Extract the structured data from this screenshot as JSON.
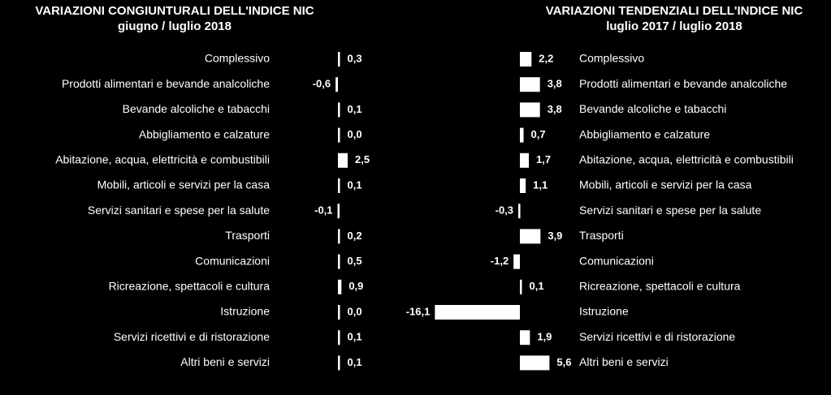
{
  "chart_data": [
    {
      "type": "bar",
      "orientation": "horizontal",
      "title": "VARIAZIONI  CONGIUNTURALI DELL'INDICE NIC",
      "subtitle": "giugno / luglio 2018",
      "categories": [
        "Complessivo",
        "Prodotti alimentari e bevande analcoliche",
        "Bevande alcoliche e tabacchi",
        "Abbigliamento e calzature",
        "Abitazione, acqua, elettricità e combustibili",
        "Mobili, articoli e servizi per la casa",
        "Servizi sanitari e spese per la salute",
        "Trasporti",
        "Comunicazioni",
        "Ricreazione, spettacoli e cultura",
        "Istruzione",
        "Servizi ricettivi e di ristorazione",
        "Altri beni e servizi"
      ],
      "values": [
        0.3,
        -0.6,
        0.1,
        0.0,
        2.5,
        0.1,
        -0.1,
        0.2,
        0.5,
        0.9,
        0.0,
        0.1,
        0.1
      ],
      "value_labels": [
        "0,3",
        "-0,6",
        "0,1",
        "0,0",
        "2,5",
        "0,1",
        "-0,1",
        "0,2",
        "0,5",
        "0,9",
        "0,0",
        "0,1",
        "0,1"
      ],
      "color": "#ffffff"
    },
    {
      "type": "bar",
      "orientation": "horizontal",
      "title": "VARIAZIONI  TENDENZIALI DELL'INDICE NIC",
      "subtitle": "luglio 2017 / luglio 2018",
      "categories": [
        "Complessivo",
        "Prodotti alimentari e bevande analcoliche",
        "Bevande alcoliche e tabacchi",
        "Abbigliamento e calzature",
        "Abitazione, acqua, elettricità e combustibili",
        "Mobili, articoli e servizi per la casa",
        "Servizi sanitari e spese per la salute",
        "Trasporti",
        "Comunicazioni",
        "Ricreazione, spettacoli e cultura",
        "Istruzione",
        "Servizi ricettivi e di ristorazione",
        "Altri beni e servizi"
      ],
      "values": [
        2.2,
        3.8,
        3.8,
        0.7,
        1.7,
        1.1,
        -0.3,
        3.9,
        -1.2,
        0.1,
        -16.1,
        1.9,
        5.6
      ],
      "value_labels": [
        "2,2",
        "3,8",
        "3,8",
        "0,7",
        "1,7",
        "1,1",
        "-0,3",
        "3,9",
        "-1,2",
        "0,1",
        "-16,1",
        "1,9",
        "5,6"
      ],
      "color": "#ffffff"
    }
  ]
}
